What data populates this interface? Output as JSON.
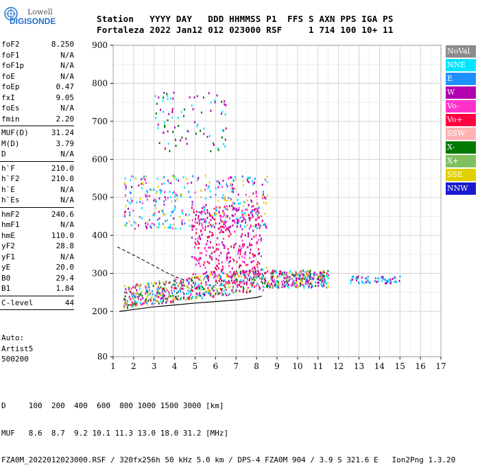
{
  "logo": {
    "company": "Lowell",
    "product": "DIGISONDE"
  },
  "header": {
    "row1": "Station   YYYY DAY   DDD HHMMSS P1  FFS S AXN PPS IGA PS",
    "row2": "Fortaleza 2022 Jan12 012 023000 RSF     1 714 100 10+ 11"
  },
  "params": {
    "group1": [
      {
        "name": "foF2",
        "value": "8.250"
      },
      {
        "name": "foF1",
        "value": "N/A"
      },
      {
        "name": "foF1p",
        "value": "N/A"
      },
      {
        "name": "foE",
        "value": "N/A"
      },
      {
        "name": "foEp",
        "value": "0.47"
      },
      {
        "name": "fxI",
        "value": "9.05"
      },
      {
        "name": "foEs",
        "value": "N/A"
      },
      {
        "name": "fmin",
        "value": "2.20"
      }
    ],
    "group2": [
      {
        "name": "MUF(D)",
        "value": "31.24"
      },
      {
        "name": "M(D)",
        "value": "3.79"
      },
      {
        "name": "D",
        "value": "N/A"
      }
    ],
    "group3": [
      {
        "name": "h`F",
        "value": "210.0"
      },
      {
        "name": "h`F2",
        "value": "210.0"
      },
      {
        "name": "h`E",
        "value": "N/A"
      },
      {
        "name": "h`Es",
        "value": "N/A"
      }
    ],
    "group4": [
      {
        "name": "hmF2",
        "value": "240.6"
      },
      {
        "name": "hmF1",
        "value": "N/A"
      },
      {
        "name": "hmE",
        "value": "110.0"
      },
      {
        "name": "yF2",
        "value": "28.8"
      },
      {
        "name": "yF1",
        "value": "N/A"
      },
      {
        "name": "yE",
        "value": "20.0"
      },
      {
        "name": "B0",
        "value": "29.4"
      },
      {
        "name": "B1",
        "value": "1.84"
      }
    ],
    "group5": [
      {
        "name": "C-level",
        "value": "44"
      }
    ]
  },
  "auto": {
    "line1": "Auto:",
    "line2": "Artist5",
    "line3": "500200"
  },
  "legend": [
    {
      "label": "NoVal",
      "color": "#8c8c8c",
      "text_color": "#ffffff"
    },
    {
      "label": "NNE",
      "color": "#00e5ff",
      "text_color": "#ffffff"
    },
    {
      "label": "E",
      "color": "#1e90ff",
      "text_color": "#ffffff"
    },
    {
      "label": "W",
      "color": "#b000b0",
      "text_color": "#ffffff"
    },
    {
      "label": "Vo-",
      "color": "#ff33cc",
      "text_color": "#ffffff"
    },
    {
      "label": "Vo+",
      "color": "#ff0040",
      "text_color": "#ffffff"
    },
    {
      "label": "SSW",
      "color": "#ffb3b3",
      "text_color": "#ffffff"
    },
    {
      "label": "X-",
      "color": "#007a00",
      "text_color": "#ffffff"
    },
    {
      "label": "X+",
      "color": "#80c060",
      "text_color": "#ffffff"
    },
    {
      "label": "SSE",
      "color": "#e0d000",
      "text_color": "#ffffff"
    },
    {
      "label": "NNW",
      "color": "#1a1ad0",
      "text_color": "#ffffff"
    }
  ],
  "chart_data": {
    "type": "scatter",
    "x_ticks": [
      1,
      2,
      3,
      4,
      5,
      6,
      7,
      8,
      9,
      10,
      11,
      12,
      13,
      14,
      15,
      16,
      17
    ],
    "y_ticks": [
      80,
      200,
      300,
      400,
      500,
      600,
      700,
      800,
      900
    ],
    "xlim": [
      1,
      17
    ],
    "ylim": [
      80,
      900
    ],
    "y_scale": "nonlinear (80 at bottom, 200 first gridline)",
    "grid": true,
    "traces": {
      "o_trace": {
        "x": [
          1.3,
          2.0,
          3.0,
          4.0,
          5.0,
          6.0,
          7.0,
          7.5,
          8.0,
          8.25
        ],
        "y": [
          200,
          205,
          212,
          217,
          222,
          226,
          230,
          233,
          237,
          240
        ]
      },
      "profile": {
        "x": [
          1.2,
          2.0,
          3.0,
          3.5,
          4.0,
          4.5
        ],
        "y": [
          370,
          348,
          320,
          305,
          292,
          282
        ]
      }
    },
    "clusters": [
      {
        "x": [
          1.5,
          11.5
        ],
        "y": [
          210,
          330
        ],
        "colors": [
          "Vo+",
          "Vo-",
          "W",
          "E",
          "NNE",
          "X-",
          "SSE",
          "NoVal"
        ]
      },
      {
        "x": [
          4.8,
          8.2
        ],
        "y": [
          300,
          480
        ],
        "colors": [
          "W",
          "Vo-",
          "Vo+"
        ]
      },
      {
        "x": [
          1.5,
          8.5
        ],
        "y": [
          420,
          560
        ],
        "colors": [
          "SSE",
          "W",
          "NNE",
          "E",
          "Vo-"
        ]
      },
      {
        "x": [
          3.0,
          6.5
        ],
        "y": [
          620,
          780
        ],
        "colors": [
          "NNE",
          "W",
          "X-"
        ]
      },
      {
        "x": [
          12.5,
          15.0
        ],
        "y": [
          275,
          295
        ],
        "colors": [
          "NNE",
          "E",
          "W"
        ]
      }
    ]
  },
  "bottom": {
    "d_row": "D     100  200  400  600  800 1000 1500 3000 [km]",
    "muf_row": "MUF   8.6  8.7  9.2 10.1 11.3 13.0 18.0 31.2 [MHz]",
    "footer": "FZA0M_2022012023000.RSF / 320fx256h 50 kHz 5.0 km / DPS-4 FZA0M 904 / 3.9 S 321.6 E   Ion2Png 1.3.20"
  }
}
